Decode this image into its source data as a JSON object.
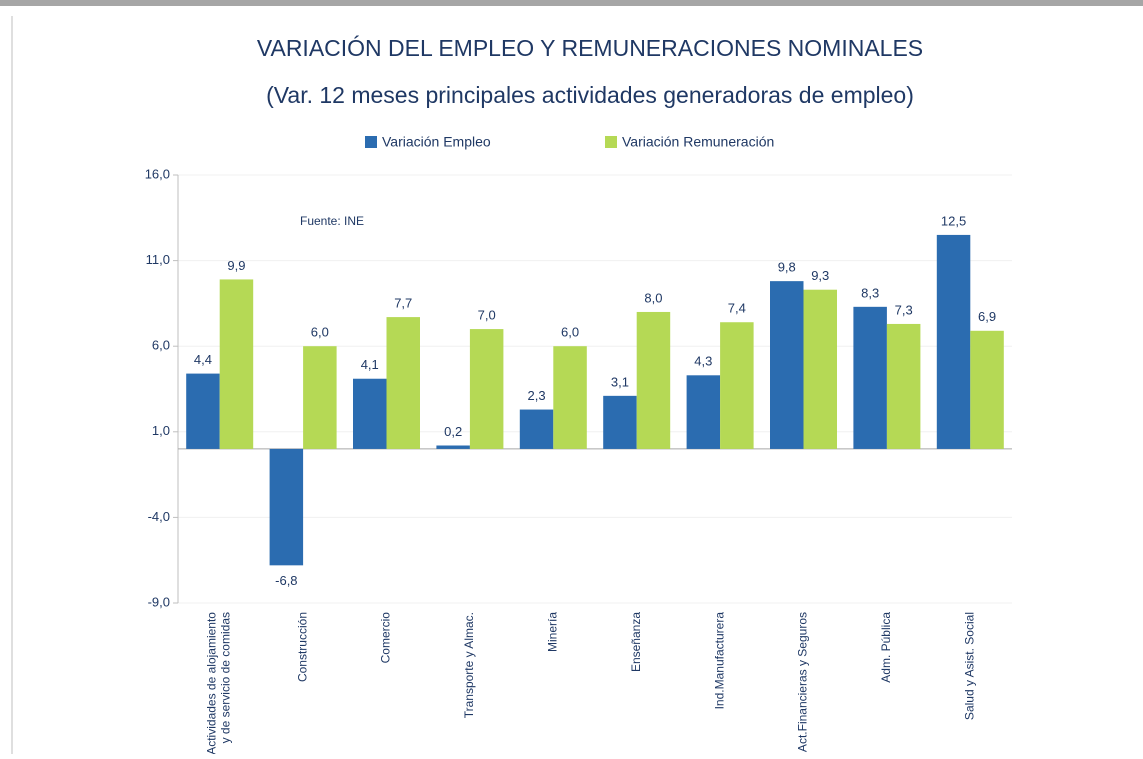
{
  "chart_data": {
    "type": "bar",
    "title": "VARIACIÓN DEL EMPLEO Y REMUNERACIONES NOMINALES",
    "subtitle": "(Var. 12 meses principales actividades generadoras de empleo)",
    "annotation": "Fuente: INE",
    "categories": [
      "Actividades de alojamiento\ny de servicio de comidas",
      "Construcción",
      "Comercio",
      "Transporte y Almac.",
      "Minería",
      "Enseñanza",
      "Ind.Manufacturera",
      "Act.Financieras y Seguros",
      "Adm. Pública",
      "Salud y Asist. Social"
    ],
    "series": [
      {
        "name": "Variación Empleo",
        "color": "#2b6cb0",
        "values": [
          4.4,
          -6.8,
          4.1,
          0.2,
          2.3,
          3.1,
          4.3,
          9.8,
          8.3,
          12.5
        ],
        "value_labels": [
          "4,4",
          "-6,8",
          "4,1",
          "0,2",
          "2,3",
          "3,1",
          "4,3",
          "9,8",
          "8,3",
          "12,5"
        ]
      },
      {
        "name": "Variación Remuneración",
        "color": "#b5d955",
        "values": [
          9.9,
          6.0,
          7.7,
          7.0,
          6.0,
          8.0,
          7.4,
          9.3,
          7.3,
          6.9
        ],
        "value_labels": [
          "9,9",
          "6,0",
          "7,7",
          "7,0",
          "6,0",
          "8,0",
          "7,4",
          "9,3",
          "7,3",
          "6,9"
        ]
      }
    ],
    "ylim": [
      -9,
      16
    ],
    "yticks": [
      {
        "value": -9,
        "label": "-9,0"
      },
      {
        "value": -4,
        "label": "-4,0"
      },
      {
        "value": 1,
        "label": "1,0"
      },
      {
        "value": 6,
        "label": "6,0"
      },
      {
        "value": 11,
        "label": "11,0"
      },
      {
        "value": 16,
        "label": "16,0"
      }
    ],
    "grid": true,
    "legend": "top"
  }
}
